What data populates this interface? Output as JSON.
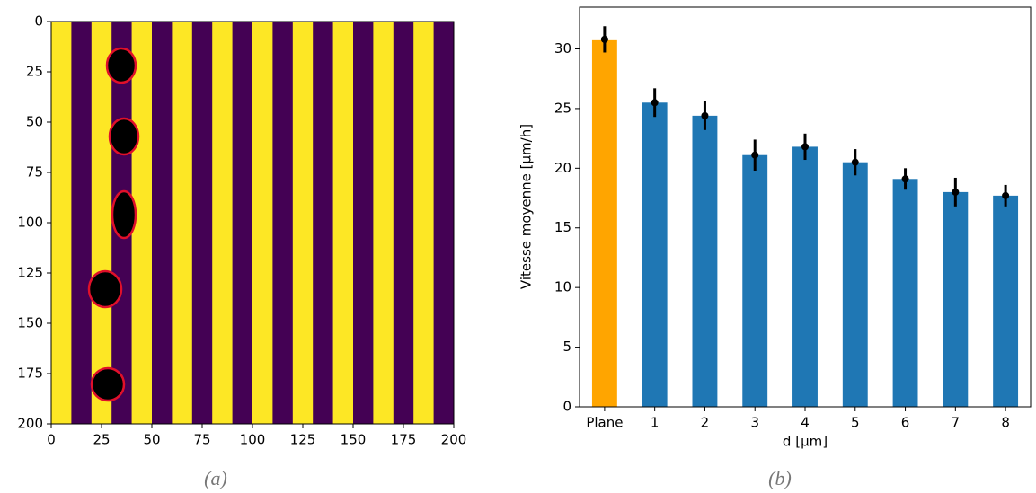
{
  "chart_data": [
    {
      "type": "image",
      "caption": "(a)",
      "xlim": [
        0,
        200
      ],
      "ylim": [
        200,
        0
      ],
      "xticks": [
        0,
        25,
        50,
        75,
        100,
        125,
        150,
        175,
        200
      ],
      "yticks": [
        0,
        25,
        50,
        75,
        100,
        125,
        150,
        175,
        200
      ]
    },
    {
      "type": "bar",
      "caption": "(b)",
      "ylabel": "Vitesse moyenne [μm/h]",
      "xlabel": "d [μm]",
      "categories": [
        "Plane",
        "1",
        "2",
        "3",
        "4",
        "5",
        "6",
        "7",
        "8"
      ],
      "values": [
        30.8,
        25.5,
        24.4,
        21.1,
        21.8,
        20.5,
        19.1,
        18.0,
        17.7
      ],
      "errors": [
        1.1,
        1.2,
        1.2,
        1.3,
        1.1,
        1.1,
        0.9,
        1.2,
        0.9
      ],
      "colors": [
        "#ffa500",
        "#1f77b4",
        "#1f77b4",
        "#1f77b4",
        "#1f77b4",
        "#1f77b4",
        "#1f77b4",
        "#1f77b4",
        "#1f77b4"
      ],
      "ylim": [
        0,
        33.5
      ],
      "yticks": [
        0,
        5,
        10,
        15,
        20,
        25,
        30
      ]
    }
  ]
}
